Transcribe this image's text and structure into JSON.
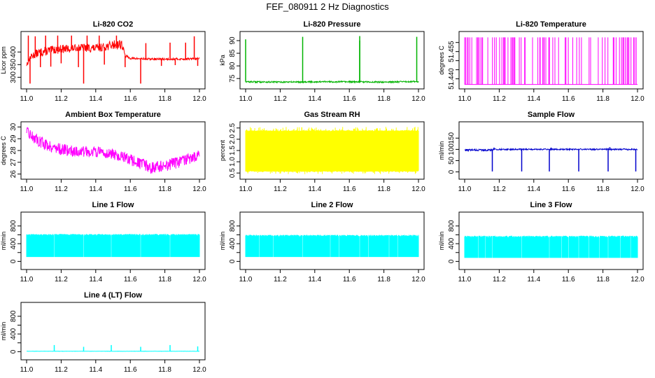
{
  "figure": {
    "title": "FEF_080911  2 Hz Diagnostics"
  },
  "chart_data": [
    {
      "type": "line",
      "title": "Li-820 CO2",
      "xlabel": "",
      "ylabel": "Licor ppm",
      "color": "#ff0000",
      "xlim": [
        11.0,
        12.0
      ],
      "ylim": [
        265,
        470
      ],
      "xticks": [
        11.0,
        11.2,
        11.4,
        11.6,
        11.8,
        12.0
      ],
      "xtick_labels": [
        "11.0",
        "11.2",
        "11.4",
        "11.6",
        "11.8",
        "12.0"
      ],
      "yticks": [
        300,
        350,
        400
      ],
      "ytick_labels": [
        "300",
        "350",
        "400"
      ],
      "series": [
        {
          "name": "CO2",
          "x": [
            11.0,
            11.02,
            11.05,
            11.1,
            11.15,
            11.2,
            11.25,
            11.3,
            11.35,
            11.4,
            11.45,
            11.5,
            11.55,
            11.57,
            11.6,
            11.7,
            11.8,
            11.9,
            12.0
          ],
          "y": [
            350,
            378,
            392,
            402,
            408,
            412,
            412,
            418,
            416,
            415,
            420,
            428,
            432,
            385,
            375,
            372,
            372,
            372,
            374
          ],
          "band": [
            10,
            12,
            16,
            18,
            16,
            18,
            14,
            14,
            18,
            16,
            16,
            18,
            22,
            6,
            4,
            4,
            4,
            4,
            4
          ],
          "spikes": [
            [
              11.01,
              465
            ],
            [
              11.02,
              275
            ],
            [
              11.05,
              462
            ],
            [
              11.08,
              340
            ],
            [
              11.11,
              465
            ],
            [
              11.14,
              342
            ],
            [
              11.18,
              465
            ],
            [
              11.2,
              355
            ],
            [
              11.26,
              465
            ],
            [
              11.3,
              340
            ],
            [
              11.33,
              275
            ],
            [
              11.35,
              465
            ],
            [
              11.42,
              465
            ],
            [
              11.45,
              350
            ],
            [
              11.52,
              465
            ],
            [
              11.57,
              340
            ],
            [
              11.66,
              275
            ],
            [
              11.69,
              435
            ],
            [
              11.78,
              345
            ],
            [
              11.83,
              437
            ],
            [
              11.86,
              348
            ],
            [
              11.92,
              437
            ],
            [
              11.97,
              462
            ],
            [
              11.99,
              345
            ]
          ]
        }
      ]
    },
    {
      "type": "line",
      "title": "Li-820 Pressure",
      "xlabel": "",
      "ylabel": "kPa",
      "color": "#00b300",
      "xlim": [
        11.0,
        12.0
      ],
      "ylim": [
        72,
        92.5
      ],
      "xticks": [
        11.0,
        11.2,
        11.4,
        11.6,
        11.8,
        12.0
      ],
      "xtick_labels": [
        "11.0",
        "11.2",
        "11.4",
        "11.6",
        "11.8",
        "12.0"
      ],
      "yticks": [
        75,
        80,
        85,
        90
      ],
      "ytick_labels": [
        "75",
        "80",
        "85",
        "90"
      ],
      "series": [
        {
          "name": "Pressure",
          "x": [
            11.0,
            11.2,
            11.4,
            11.6,
            11.8,
            12.0
          ],
          "y": [
            73.7,
            73.6,
            73.7,
            73.7,
            73.6,
            73.8
          ],
          "band": [
            0.3,
            0.3,
            0.3,
            0.3,
            0.3,
            0.3
          ],
          "spikes": [
            [
              11.0,
              90.5
            ],
            [
              11.33,
              91.5
            ],
            [
              11.66,
              91.8
            ],
            [
              11.66,
              90.0
            ],
            [
              11.99,
              91.5
            ]
          ]
        }
      ]
    },
    {
      "type": "line",
      "title": "Li-820 Temperature",
      "xlabel": "",
      "ylabel": "degrees C",
      "color": "#ff00ff",
      "xlim": [
        11.0,
        12.0
      ],
      "ylim": [
        51.436,
        51.4645
      ],
      "xticks": [
        11.0,
        11.2,
        11.4,
        11.6,
        11.8,
        12.0
      ],
      "xtick_labels": [
        "11.0",
        "11.2",
        "11.4",
        "11.6",
        "11.8",
        "12.0"
      ],
      "yticks": [
        51.44,
        51.445,
        51.45,
        51.455,
        51.46
      ],
      "ytick_labels": [
        "51.440",
        "",
        "",
        "51.455",
        ""
      ],
      "series": [
        {
          "name": "Temperature",
          "low": 51.4369,
          "high": 51.4628,
          "pattern": "discrete toggling between two quantized levels"
        }
      ]
    },
    {
      "type": "line",
      "title": "Ambient Box Temperature",
      "xlabel": "",
      "ylabel": "degrees C",
      "color": "#ff00ff",
      "xlim": [
        11.0,
        12.0
      ],
      "ylim": [
        25.8,
        30.2
      ],
      "xticks": [
        11.0,
        11.2,
        11.4,
        11.6,
        11.8,
        12.0
      ],
      "xtick_labels": [
        "11.0",
        "11.2",
        "11.4",
        "11.6",
        "11.8",
        "12.0"
      ],
      "yticks": [
        26,
        27,
        28,
        29,
        30
      ],
      "ytick_labels": [
        "26",
        "27",
        "28",
        "29",
        "30"
      ],
      "series": [
        {
          "name": "Ambient",
          "x": [
            11.0,
            11.05,
            11.1,
            11.15,
            11.2,
            11.3,
            11.4,
            11.5,
            11.6,
            11.7,
            11.75,
            11.8,
            11.9,
            12.0
          ],
          "y": [
            29.6,
            29.0,
            28.6,
            28.3,
            28.1,
            27.9,
            27.9,
            27.7,
            27.2,
            26.6,
            26.5,
            26.7,
            27.1,
            27.6
          ],
          "band": [
            0.4,
            0.5,
            0.5,
            0.5,
            0.5,
            0.5,
            0.45,
            0.45,
            0.5,
            0.55,
            0.55,
            0.5,
            0.5,
            0.5
          ]
        }
      ]
    },
    {
      "type": "line",
      "title": "Gas Stream RH",
      "xlabel": "",
      "ylabel": "percent",
      "color": "#ffff00",
      "xlim": [
        11.0,
        12.0
      ],
      "ylim": [
        0.35,
        2.65
      ],
      "xticks": [
        11.0,
        11.2,
        11.4,
        11.6,
        11.8,
        12.0
      ],
      "xtick_labels": [
        "11.0",
        "11.2",
        "11.4",
        "11.6",
        "11.8",
        "12.0"
      ],
      "yticks": [
        0.5,
        1.0,
        1.5,
        2.0,
        2.5
      ],
      "ytick_labels": [
        "0.5",
        "1.0",
        "1.5",
        "2.0",
        "2.5"
      ],
      "series": [
        {
          "name": "RH",
          "low": 0.6,
          "high": 2.4,
          "pattern": "dense oscillation with dips to 0.45 and peaks to 2.55"
        }
      ]
    },
    {
      "type": "line",
      "title": "Sample Flow",
      "xlabel": "",
      "ylabel": "ml/min",
      "color": "#0000cd",
      "xlim": [
        11.0,
        12.0
      ],
      "ylim": [
        -20,
        210
      ],
      "xticks": [
        11.0,
        11.2,
        11.4,
        11.6,
        11.8,
        12.0
      ],
      "xtick_labels": [
        "11.0",
        "11.2",
        "11.4",
        "11.6",
        "11.8",
        "12.0"
      ],
      "yticks": [
        0,
        50,
        100,
        150
      ],
      "ytick_labels": [
        "0",
        "50",
        "100",
        "150"
      ],
      "series": [
        {
          "name": "Sample",
          "x": [
            11.0,
            11.16,
            11.17,
            12.0
          ],
          "y": [
            97,
            97,
            100,
            100
          ],
          "band": [
            4,
            4,
            3,
            3
          ],
          "spikes": [
            [
              11.16,
              2
            ],
            [
              11.33,
              2
            ],
            [
              11.49,
              2
            ],
            [
              11.66,
              2
            ],
            [
              11.83,
              2
            ],
            [
              11.99,
              2
            ],
            [
              11.17,
              108
            ],
            [
              11.5,
              108
            ],
            [
              11.84,
              110
            ]
          ]
        }
      ]
    },
    {
      "type": "line",
      "title": "Line 1 Flow",
      "xlabel": "",
      "ylabel": "ml/min",
      "color": "#00ffff",
      "xlim": [
        11.0,
        12.0
      ],
      "ylim": [
        -120,
        1050
      ],
      "xticks": [
        11.0,
        11.2,
        11.4,
        11.6,
        11.8,
        12.0
      ],
      "xtick_labels": [
        "11.0",
        "11.2",
        "11.4",
        "11.6",
        "11.8",
        "12.0"
      ],
      "yticks": [
        0,
        200,
        400,
        600,
        800
      ],
      "ytick_labels": [
        "0",
        "",
        "400",
        "",
        "800"
      ],
      "series": [
        {
          "name": "Line 1",
          "low": 100,
          "high": 620,
          "gaps": [
            11.16,
            11.33,
            11.49,
            11.66,
            11.83
          ]
        }
      ]
    },
    {
      "type": "line",
      "title": "Line 2 Flow",
      "xlabel": "",
      "ylabel": "ml/min",
      "color": "#00ffff",
      "xlim": [
        11.0,
        12.0
      ],
      "ylim": [
        -120,
        1050
      ],
      "xticks": [
        11.0,
        11.2,
        11.4,
        11.6,
        11.8,
        12.0
      ],
      "xtick_labels": [
        "11.0",
        "11.2",
        "11.4",
        "11.6",
        "11.8",
        "12.0"
      ],
      "yticks": [
        0,
        200,
        400,
        600,
        800
      ],
      "ytick_labels": [
        "0",
        "",
        "400",
        "",
        "800"
      ],
      "series": [
        {
          "name": "Line 2",
          "low": 100,
          "high": 600,
          "gaps": [
            11.08,
            11.16,
            11.33,
            11.49,
            11.54,
            11.66,
            11.71,
            11.83,
            11.88
          ]
        }
      ]
    },
    {
      "type": "line",
      "title": "Line 3 Flow",
      "xlabel": "",
      "ylabel": "ml/min",
      "color": "#00ffff",
      "xlim": [
        11.0,
        12.0
      ],
      "ylim": [
        -120,
        1050
      ],
      "xticks": [
        11.0,
        11.2,
        11.4,
        11.6,
        11.8,
        12.0
      ],
      "xtick_labels": [
        "11.0",
        "11.2",
        "11.4",
        "11.6",
        "11.8",
        "12.0"
      ],
      "yticks": [
        0,
        200,
        400,
        600,
        800
      ],
      "ytick_labels": [
        "0",
        "",
        "400",
        "",
        "800"
      ],
      "series": [
        {
          "name": "Line 3",
          "low": 80,
          "high": 580,
          "gaps": [
            11.08,
            11.12,
            11.16,
            11.33,
            11.49,
            11.56,
            11.6,
            11.66,
            11.72,
            11.78,
            11.83,
            11.9,
            11.96
          ]
        }
      ]
    },
    {
      "type": "line",
      "title": "Line 4 (LT) Flow",
      "xlabel": "",
      "ylabel": "ml/min",
      "color": "#00ffff",
      "xlim": [
        11.0,
        12.0
      ],
      "ylim": [
        -120,
        1050
      ],
      "xticks": [
        11.0,
        11.2,
        11.4,
        11.6,
        11.8,
        12.0
      ],
      "xtick_labels": [
        "11.0",
        "11.2",
        "11.4",
        "11.6",
        "11.8",
        "12.0"
      ],
      "yticks": [
        0,
        200,
        400,
        600,
        800
      ],
      "ytick_labels": [
        "0",
        "",
        "400",
        "",
        "800"
      ],
      "series": [
        {
          "name": "Line 4",
          "x": [
            11.0,
            12.0
          ],
          "y": [
            10,
            10
          ],
          "band": [
            3,
            3
          ],
          "spikes": [
            [
              11.16,
              150
            ],
            [
              11.33,
              110
            ],
            [
              11.49,
              150
            ],
            [
              11.66,
              110
            ],
            [
              11.83,
              150
            ],
            [
              11.99,
              120
            ]
          ]
        }
      ]
    }
  ]
}
